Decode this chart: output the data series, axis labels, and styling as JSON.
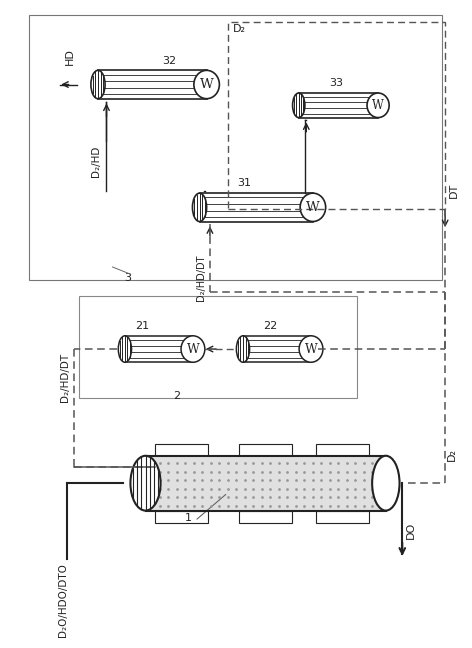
{
  "bg_color": "#ffffff",
  "lc": "#222222",
  "dc": "#555555",
  "figsize": [
    4.72,
    6.48
  ],
  "dpi": 100,
  "labels": {
    "HD": "HD",
    "DT": "DT",
    "D2_right": "D₂",
    "D2_mid": "D₂",
    "DO": "DO",
    "D2HD": "D₂/HD",
    "D2HDDT_mid": "D₂/HD/DT",
    "D2HDDT_left": "D₂/HD/DT",
    "D2OHDO": "D₂O/HDO/DTO",
    "num1": "1",
    "num2": "2",
    "num3": "3",
    "num21": "21",
    "num22": "22",
    "num31": "31",
    "num32": "32",
    "num33": "33"
  }
}
